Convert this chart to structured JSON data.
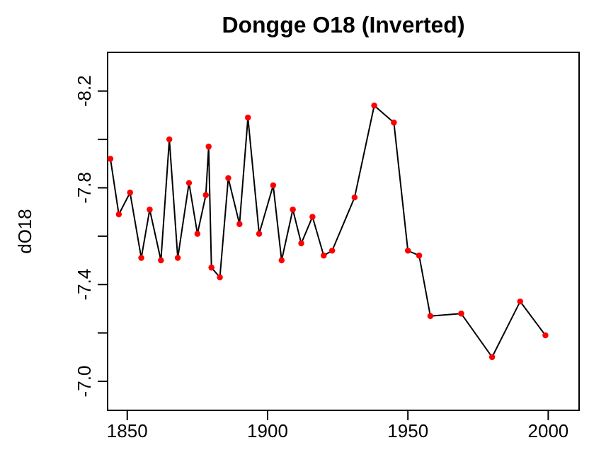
{
  "chart_data": {
    "type": "line",
    "title": "Dongge O18 (Inverted)",
    "ylabel": "dO18",
    "x": [
      1844,
      1847,
      1851,
      1855,
      1858,
      1862,
      1865,
      1868,
      1872,
      1875,
      1878,
      1879,
      1880,
      1883,
      1886,
      1890,
      1893,
      1897,
      1902,
      1905,
      1909,
      1912,
      1916,
      1920,
      1923,
      1931,
      1938,
      1945,
      1950,
      1954,
      1958,
      1969,
      1980,
      1990,
      1999
    ],
    "series": [
      {
        "marker": "none",
        "color": "#000000",
        "values": [
          -7.92,
          -7.69,
          -7.78,
          -7.51,
          -7.71,
          -7.5,
          -8.0,
          -7.51,
          -7.82,
          -7.61,
          -7.77,
          -7.97,
          -7.47,
          -7.43,
          -7.84,
          -7.65,
          -8.09,
          -7.61,
          -7.81,
          -7.5,
          -7.71,
          -7.57,
          -7.68,
          -7.52,
          -7.54,
          -7.76,
          -8.14,
          -8.07,
          -7.54,
          -7.52,
          -7.27,
          -7.28,
          -7.1,
          -7.33,
          -7.19
        ]
      },
      {
        "type": "scatter",
        "color": "#ff0000",
        "values": [
          -7.92,
          -7.69,
          -7.78,
          -7.51,
          -7.71,
          -7.5,
          -8.0,
          -7.51,
          -7.82,
          -7.61,
          -7.77,
          -7.97,
          -7.47,
          -7.43,
          -7.84,
          -7.65,
          -8.09,
          -7.61,
          -7.81,
          -7.5,
          -7.71,
          -7.57,
          -7.68,
          -7.52,
          -7.54,
          -7.76,
          -8.14,
          -8.07,
          -7.54,
          -7.52,
          -7.27,
          -7.28,
          -7.1,
          -7.33,
          -7.19
        ]
      }
    ],
    "xlim": [
      1843,
      2011
    ],
    "xticks": [
      1850,
      1900,
      1950,
      2000
    ],
    "ylim": [
      -6.88,
      -8.36
    ],
    "yticks": [
      {
        "value": -7.0,
        "label": "-7.0"
      },
      {
        "value": -7.2,
        "label": null
      },
      -7.4,
      {
        "value": -7.6,
        "label": null
      },
      -7.8,
      {
        "value": -8.0,
        "label": null
      },
      -8.2
    ],
    "marker": "circle",
    "line_style": "solid",
    "grid": false
  }
}
